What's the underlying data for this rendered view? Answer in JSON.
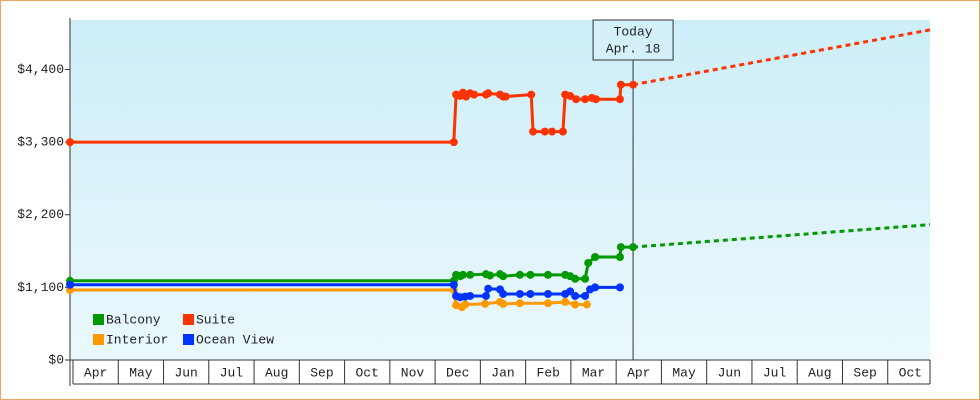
{
  "chart_data": {
    "type": "line",
    "categories": [
      "Apr",
      "May",
      "Jun",
      "Jul",
      "Aug",
      "Sep",
      "Oct",
      "Nov",
      "Dec",
      "Jan",
      "Feb",
      "Mar",
      "Apr",
      "May",
      "Jun",
      "Jul",
      "Aug",
      "Sep",
      "Oct"
    ],
    "xlim": [
      0,
      19
    ],
    "ylim": [
      0,
      5150
    ],
    "yticks": [
      {
        "value": 0,
        "label": "$0"
      },
      {
        "value": 1100,
        "label": "$1,100"
      },
      {
        "value": 2200,
        "label": "$2,200"
      },
      {
        "value": 3300,
        "label": "$3,300"
      },
      {
        "value": 4400,
        "label": "$4,400"
      }
    ],
    "annotation": {
      "x": 12.44,
      "lines": [
        "Today",
        "Apr. 18"
      ]
    },
    "legend": "lower-left",
    "series": [
      {
        "name": "Balcony",
        "color": "#009900",
        "x": [
          0,
          8.48,
          8.53,
          8.62,
          8.68,
          8.84,
          9.19,
          9.28,
          9.5,
          9.57,
          9.94,
          10.17,
          10.56,
          10.94,
          11.05,
          11.16,
          11.38,
          11.45,
          11.6,
          12.15,
          12.17,
          12.44
        ],
        "values": [
          1200,
          1200,
          1290,
          1270,
          1290,
          1290,
          1300,
          1280,
          1300,
          1270,
          1290,
          1290,
          1290,
          1290,
          1270,
          1230,
          1230,
          1470,
          1560,
          1560,
          1710,
          1710
        ],
        "forecast_x": [
          12.44,
          19
        ],
        "forecast_values": [
          1710,
          2050
        ]
      },
      {
        "name": "Suite",
        "color": "#ff3300",
        "x": [
          0,
          8.48,
          8.53,
          8.62,
          8.68,
          8.75,
          8.84,
          8.93,
          9.19,
          9.24,
          9.5,
          9.57,
          9.63,
          10.19,
          10.23,
          10.49,
          10.65,
          10.89,
          10.94,
          11.05,
          11.18,
          11.38,
          11.53,
          11.62,
          12.15,
          12.17,
          12.44
        ],
        "values": [
          3300,
          3300,
          4020,
          4000,
          4050,
          3990,
          4040,
          4020,
          4020,
          4040,
          4020,
          3990,
          3990,
          4020,
          3460,
          3460,
          3460,
          3460,
          4020,
          4000,
          3950,
          3950,
          3970,
          3950,
          3950,
          4170,
          4170
        ],
        "forecast_x": [
          12.44,
          19
        ],
        "forecast_values": [
          4170,
          5000
        ]
      },
      {
        "name": "Interior",
        "color": "#ff9900",
        "x": [
          0,
          8.48,
          8.53,
          8.66,
          8.73,
          9.17,
          9.5,
          9.57,
          9.94,
          10.56,
          10.94,
          11.16,
          11.42
        ],
        "values": [
          1060,
          1060,
          830,
          800,
          840,
          850,
          880,
          850,
          860,
          860,
          880,
          840,
          840
        ]
      },
      {
        "name": "Ocean View",
        "color": "#0033ff",
        "x": [
          0,
          8.48,
          8.53,
          8.62,
          8.73,
          8.84,
          9.19,
          9.24,
          9.5,
          9.57,
          9.94,
          10.17,
          10.56,
          10.94,
          11.05,
          11.16,
          11.38,
          11.49,
          11.6,
          12.15
        ],
        "values": [
          1140,
          1140,
          970,
          950,
          960,
          970,
          970,
          1080,
          1070,
          1000,
          1000,
          1000,
          1000,
          1000,
          1040,
          970,
          970,
          1070,
          1100,
          1100
        ]
      }
    ]
  }
}
